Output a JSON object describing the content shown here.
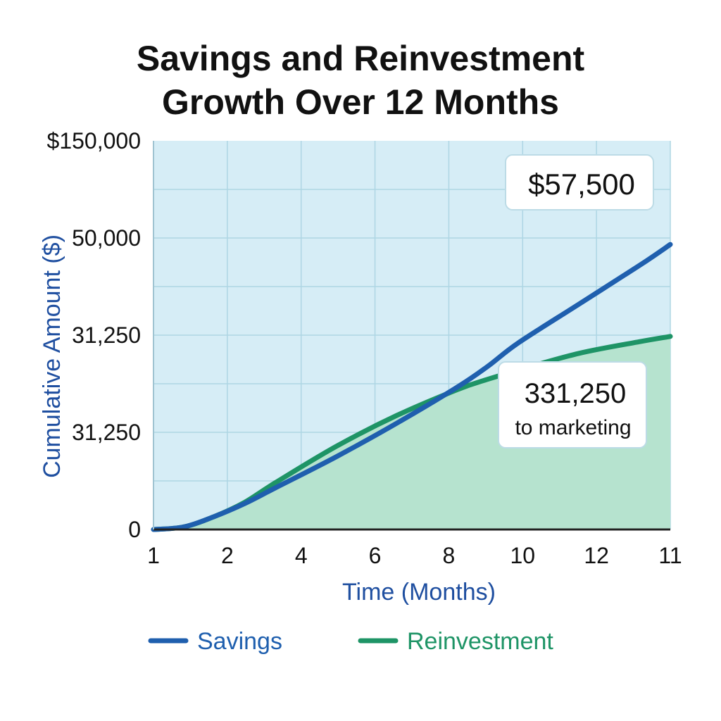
{
  "title_lines": [
    "Savings and Reinvestment",
    "Growth Over 12 Months"
  ],
  "colors": {
    "savings": "#1f5fae",
    "reinvestment": "#1e9466",
    "plot_bg": "#d6edf6",
    "reinvestment_fill": "#b6e3cf",
    "grid": "#aed6e4",
    "axis_label": "#1f4fa0"
  },
  "chart_data": {
    "type": "line",
    "title": "Savings and Reinvestment Growth Over 12 Months",
    "xlabel": "Time (Months)",
    "ylabel": "Cumulative Amount ($)",
    "x_tick_labels": [
      "1",
      "2",
      "4",
      "6",
      "8",
      "10",
      "12",
      "11"
    ],
    "y_tick_labels": [
      "$150,000",
      "50,000",
      "31,250",
      "31,250",
      "0"
    ],
    "grid": true,
    "legend_position": "bottom",
    "series": [
      {
        "name": "Savings",
        "points": [
          [
            0,
            0
          ],
          [
            0.5,
            1000
          ],
          [
            1,
            5000
          ],
          [
            1.5,
            10000
          ],
          [
            2,
            16000
          ],
          [
            3,
            28000
          ],
          [
            4,
            41000
          ],
          [
            5,
            55000
          ],
          [
            5.5,
            63000
          ],
          [
            6,
            72000
          ],
          [
            7,
            87000
          ],
          [
            8,
            102000
          ],
          [
            8.5,
            110000
          ]
        ]
      },
      {
        "name": "Reinvestment",
        "area": true,
        "points": [
          [
            0,
            0
          ],
          [
            0.5,
            1000
          ],
          [
            1,
            5000
          ],
          [
            1.5,
            10500
          ],
          [
            2,
            18000
          ],
          [
            3,
            32000
          ],
          [
            4,
            44000
          ],
          [
            5,
            54000
          ],
          [
            5.5,
            58000
          ],
          [
            6,
            61500
          ],
          [
            7,
            68000
          ],
          [
            8,
            72500
          ],
          [
            8.5,
            74500
          ]
        ]
      }
    ],
    "annotations": [
      {
        "name": "savings-callout",
        "lines": [
          "$57,500"
        ]
      },
      {
        "name": "reinvestment-callout",
        "lines": [
          "331,250",
          "to marketing"
        ]
      }
    ]
  }
}
